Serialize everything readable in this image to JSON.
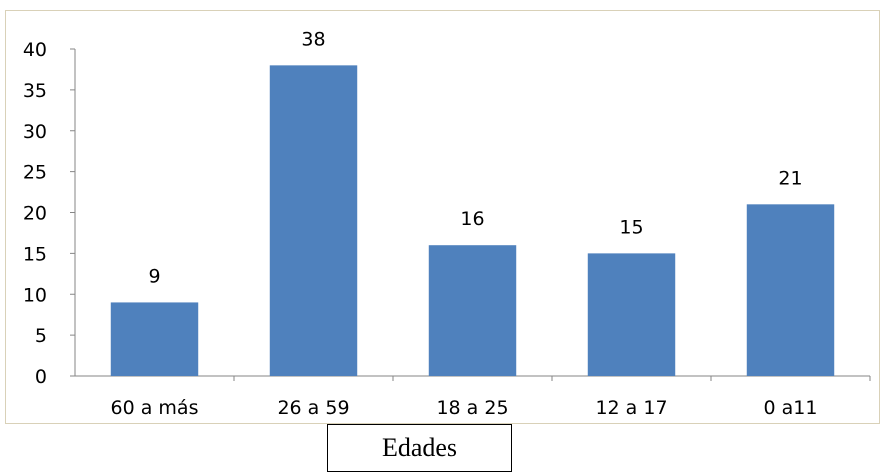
{
  "chart_data": {
    "type": "bar",
    "title": "",
    "xlabel": "Edades",
    "ylabel": "",
    "categories": [
      "60 a más",
      "26 a 59",
      "18 a 25",
      "12 a 17",
      "0 a11"
    ],
    "values": [
      9,
      38,
      16,
      15,
      21
    ],
    "data_labels": [
      "9",
      "38",
      "16",
      "15",
      "21"
    ],
    "ylim": [
      0,
      40
    ],
    "yticks": [
      "0",
      "5",
      "10",
      "15",
      "20",
      "25",
      "30",
      "35",
      "40"
    ],
    "grid": false,
    "legend": "none",
    "colors": {
      "bar": "#4f81bd",
      "axis": "#868686",
      "text": "#000000"
    }
  }
}
